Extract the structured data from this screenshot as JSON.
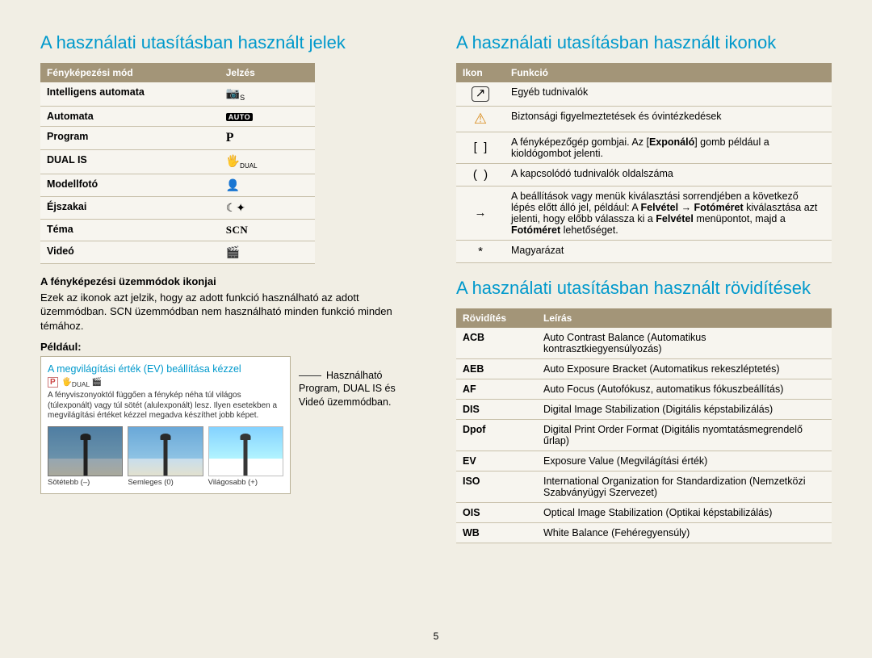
{
  "left": {
    "heading": "A használati utasításban használt jelek",
    "modes_table": {
      "headers": [
        "Fényképezési mód",
        "Jelzés"
      ],
      "rows": [
        {
          "label": "Intelligens automata",
          "sym": "camera_s"
        },
        {
          "label": "Automata",
          "sym": "auto"
        },
        {
          "label": "Program",
          "sym": "P"
        },
        {
          "label": "DUAL IS",
          "sym": "dual"
        },
        {
          "label": "Modellfotó",
          "sym": "portrait"
        },
        {
          "label": "Éjszakai",
          "sym": "night"
        },
        {
          "label": "Téma",
          "sym": "SCN"
        },
        {
          "label": "Videó",
          "sym": "video"
        }
      ]
    },
    "sub1": "A fényképezési üzemmódok ikonjai",
    "body1": "Ezek az ikonok azt jelzik, hogy az adott funkció használható az adott üzemmódban. SCN üzemmódban nem használható minden funkció minden témához.",
    "sub2": "Például:",
    "example": {
      "title": "A megvilágítási érték (EV) beállítása kézzel",
      "desc": "A fényviszonyoktól függően a fénykép néha túl világos (túlexponált) vagy túl sötét (alulexponált) lesz. Ilyen esetekben a megvilágítási értéket kézzel megadva készíthet jobb képet.",
      "thumbs": [
        "Sötétebb (–)",
        "Semleges (0)",
        "Világosabb (+)"
      ]
    },
    "example_note": "Használható Program, DUAL IS és Videó üzemmódban."
  },
  "right": {
    "heading1": "A használati utasításban használt ikonok",
    "icons_table": {
      "headers": [
        "Ikon",
        "Funkció"
      ],
      "rows": [
        {
          "icon": "note",
          "text": "Egyéb tudnivalók"
        },
        {
          "icon": "warn",
          "text": "Biztonsági figyelmeztetések és óvintézkedések"
        },
        {
          "icon": "brackets",
          "text": "A fényképezőgép gombjai. Az [Exponáló] gomb például a kioldógombot jelenti."
        },
        {
          "icon": "parens",
          "text": "A kapcsolódó tudnivalók oldalszáma"
        },
        {
          "icon": "arrow",
          "text": "A beállítások vagy menük kiválasztási sorrendjében a következő lépés előtt álló jel, például: A Felvétel → Fotóméret kiválasztása azt jelenti, hogy előbb válassza ki a Felvétel menüpontot, majd a Fotóméret lehetőséget."
        },
        {
          "icon": "star",
          "text": "Magyarázat"
        }
      ]
    },
    "heading2": "A használati utasításban használt rövidítések",
    "abbrev_table": {
      "headers": [
        "Rövidítés",
        "Leírás"
      ],
      "rows": [
        {
          "abbr": "ACB",
          "desc": "Auto Contrast Balance (Automatikus kontrasztkiegyensúlyozás)"
        },
        {
          "abbr": "AEB",
          "desc": "Auto Exposure Bracket (Automatikus rekeszléptetés)"
        },
        {
          "abbr": "AF",
          "desc": "Auto Focus (Autofókusz, automatikus fókuszbeállítás)"
        },
        {
          "abbr": "DIS",
          "desc": "Digital Image Stabilization (Digitális képstabilizálás)"
        },
        {
          "abbr": "Dpof",
          "desc": "Digital Print Order Format (Digitális nyomtatásmegrendelő űrlap)"
        },
        {
          "abbr": "EV",
          "desc": "Exposure Value (Megvilágítási érték)"
        },
        {
          "abbr": "ISO",
          "desc": "International Organization for Standardization (Nemzetközi Szabványügyi Szervezet)"
        },
        {
          "abbr": "OIS",
          "desc": "Optical Image Stabilization (Optikai képstabilizálás)"
        },
        {
          "abbr": "WB",
          "desc": "White Balance (Fehéregyensúly)"
        }
      ]
    }
  },
  "page_number": "5",
  "colors": {
    "heading": "#0099cc",
    "th_bg": "#a39578",
    "th_fg": "#ffffff",
    "border": "#c8c0aa",
    "page_bg": "#f1eee4"
  }
}
